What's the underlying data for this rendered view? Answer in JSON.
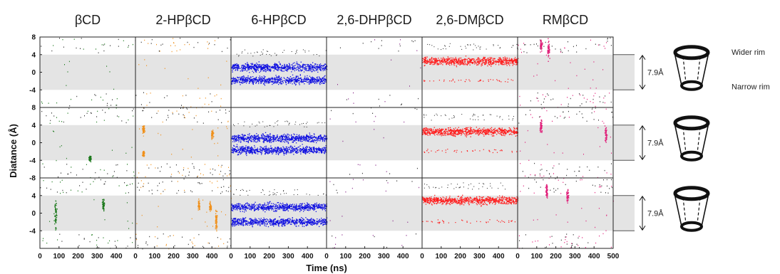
{
  "chart_data": {
    "type": "scatter",
    "xlabel": "Time (ns)",
    "ylabel": "Diatance (Å)",
    "xlim": [
      0,
      500
    ],
    "ylim": [
      -8,
      8
    ],
    "xticks": [
      "0",
      "100",
      "200",
      "300",
      "400"
    ],
    "xticks_last": [
      "0",
      "100",
      "200",
      "300",
      "400",
      "500"
    ],
    "yticks": [
      "8",
      "4",
      "0",
      "-4"
    ],
    "yticks_bottom": [
      "-8",
      "4",
      "0",
      "-4"
    ],
    "cavity_band": [
      -4,
      4
    ],
    "cavity_height_label": "7.9Å",
    "rim_labels": {
      "wider": "Wider rim",
      "narrow": "Narrow rim"
    },
    "columns": [
      {
        "title": "βCD",
        "color": "#1e7a1e",
        "replicas": [
          {
            "mode": "rare",
            "density": 0.25
          },
          {
            "mode": "rare",
            "density": 0.35,
            "streaks": [
              [
                260,
                -3.5,
                0.6
              ]
            ]
          },
          {
            "mode": "rare",
            "density": 0.35,
            "streaks": [
              [
                80,
                0,
                3.5
              ],
              [
                330,
                2,
                1.5
              ]
            ]
          }
        ]
      },
      {
        "title": "2-HPβCD",
        "color": "#f0901a",
        "replicas": [
          {
            "mode": "rare",
            "density": 0.35
          },
          {
            "mode": "rare",
            "density": 0.5,
            "streaks": [
              [
                40,
                3,
                1.2
              ],
              [
                40,
                -2.4,
                0.6
              ],
              [
                400,
                2,
                1
              ]
            ]
          },
          {
            "mode": "rare",
            "density": 0.5,
            "streaks": [
              [
                330,
                2,
                1.2
              ],
              [
                420,
                -1.5,
                2.5
              ],
              [
                390,
                1.5,
                1
              ]
            ]
          }
        ]
      },
      {
        "title": "6-HPβCD",
        "color": "#1010e0",
        "replicas": [
          {
            "mode": "bands",
            "levels": [
              1.2,
              -1.7
            ]
          },
          {
            "mode": "bands",
            "levels": [
              1.1,
              -1.6
            ]
          },
          {
            "mode": "bands",
            "levels": [
              1.5,
              -1.9
            ]
          }
        ]
      },
      {
        "title": "2,6-DHPβCD",
        "color": "#8a2a8a",
        "replicas": [
          {
            "mode": "rare",
            "density": 0.15
          },
          {
            "mode": "rare",
            "density": 0.1
          },
          {
            "mode": "rare",
            "density": 0.15
          }
        ]
      },
      {
        "title": "2,6-DMβCD",
        "color": "#ff1a1a",
        "replicas": [
          {
            "mode": "band",
            "levels": [
              2.6
            ],
            "minor": -1.8
          },
          {
            "mode": "band",
            "levels": [
              2.6
            ],
            "minor": -1.8
          },
          {
            "mode": "band",
            "levels": [
              3.0
            ],
            "minor": -1.8
          }
        ]
      },
      {
        "title": "RMβCD",
        "color": "#e0207a",
        "replicas": [
          {
            "mode": "rare",
            "density": 0.5,
            "streaks": [
              [
                120,
                6,
                1.5
              ],
              [
                160,
                5,
                2
              ]
            ]
          },
          {
            "mode": "rare",
            "density": 0.45,
            "streaks": [
              [
                120,
                4,
                1.5
              ],
              [
                460,
                2,
                2
              ]
            ]
          },
          {
            "mode": "rare",
            "density": 0.45,
            "streaks": [
              [
                150,
                5,
                2
              ],
              [
                260,
                4,
                1.5
              ]
            ]
          }
        ]
      }
    ]
  }
}
